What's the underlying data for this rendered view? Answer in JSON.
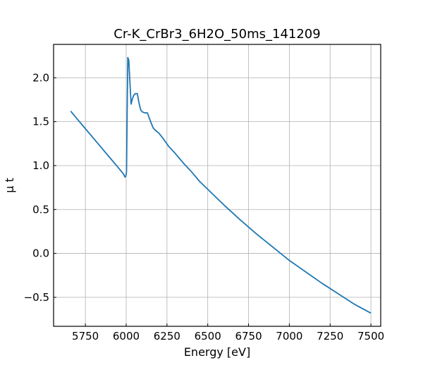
{
  "chart_data": {
    "type": "line",
    "title": "Cr-K_CrBr3_6H2O_50ms_141209",
    "xlabel": "Energy [eV]",
    "ylabel": "μ t",
    "xlim": [
      5555,
      7560
    ],
    "ylim": [
      -0.83,
      2.38
    ],
    "xticks": [
      5750,
      6000,
      6250,
      6500,
      6750,
      7000,
      7250,
      7500
    ],
    "yticks": [
      -0.5,
      0.0,
      0.5,
      1.0,
      1.5,
      2.0
    ],
    "xtick_labels": [
      "5750",
      "6000",
      "6250",
      "6500",
      "6750",
      "7000",
      "7250",
      "7500"
    ],
    "ytick_labels": [
      "−0.5",
      "0.0",
      "0.5",
      "1.0",
      "1.5",
      "2.0"
    ],
    "grid": true,
    "line_color": "#1f77b4",
    "series": [
      {
        "x": [
          5660,
          5700,
          5750,
          5800,
          5850,
          5900,
          5950,
          5985,
          5992,
          5998,
          6002,
          6006,
          6010,
          6016,
          6022,
          6030,
          6038,
          6046,
          6056,
          6068,
          6080,
          6090,
          6100,
          6115,
          6130,
          6150,
          6165,
          6180,
          6200,
          6230,
          6260,
          6300,
          6350,
          6400,
          6450,
          6500,
          6600,
          6700,
          6800,
          6900,
          7000,
          7100,
          7200,
          7300,
          7400,
          7500
        ],
        "y": [
          1.62,
          1.53,
          1.42,
          1.31,
          1.2,
          1.09,
          0.98,
          0.9,
          0.87,
          0.88,
          0.93,
          1.6,
          2.23,
          2.2,
          1.98,
          1.7,
          1.76,
          1.8,
          1.82,
          1.82,
          1.7,
          1.63,
          1.61,
          1.6,
          1.6,
          1.5,
          1.43,
          1.4,
          1.37,
          1.3,
          1.22,
          1.14,
          1.03,
          0.93,
          0.82,
          0.73,
          0.55,
          0.38,
          0.22,
          0.07,
          -0.08,
          -0.21,
          -0.34,
          -0.46,
          -0.58,
          -0.68
        ]
      }
    ]
  }
}
